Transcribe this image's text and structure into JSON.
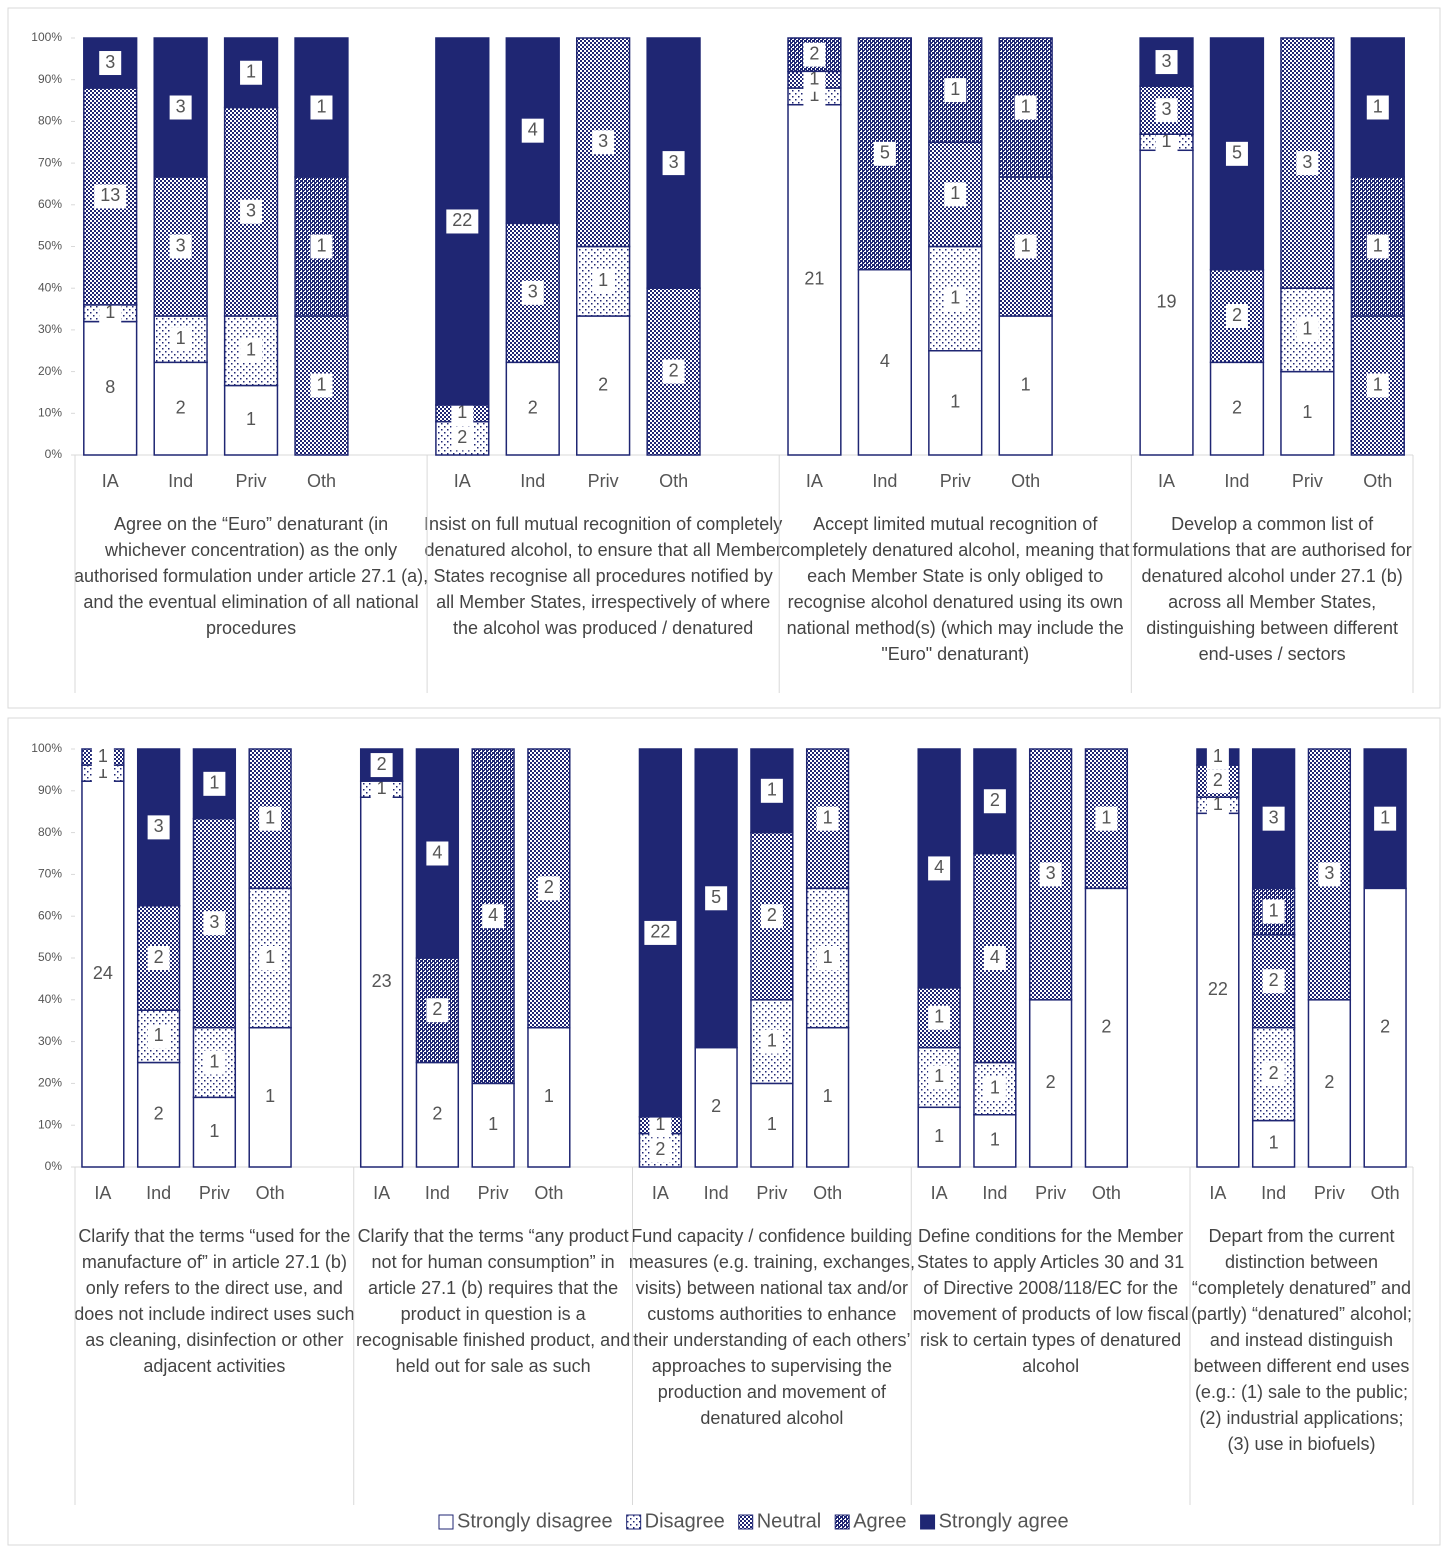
{
  "chart_data": [
    {
      "type": "bar",
      "stacked": "percent",
      "ylim": [
        0,
        100
      ],
      "yticks": [
        {
          "value": 0,
          "label": "0%"
        },
        {
          "value": 10,
          "label": "10%"
        },
        {
          "value": 20,
          "label": "20%"
        },
        {
          "value": 30,
          "label": "30%"
        },
        {
          "value": 40,
          "label": "40%"
        },
        {
          "value": 50,
          "label": "50%"
        },
        {
          "value": 60,
          "label": "60%"
        },
        {
          "value": 70,
          "label": "70%"
        },
        {
          "value": 80,
          "label": "80%"
        },
        {
          "value": 90,
          "label": "90%"
        },
        {
          "value": 100,
          "label": "100%"
        }
      ],
      "groups": [
        {
          "label": "Agree on the “Euro” denaturant (in whichever concentration) as the only authorised formulation under article 27.1 (a), and the eventual elimination of all national procedures",
          "categories": [
            "IA",
            "Ind",
            "Priv",
            "Oth"
          ]
        },
        {
          "label": "Insist on full mutual recognition of completely denatured alcohol, to ensure that all Member States recognise all procedures notified by all Member States, irrespectively of where the alcohol was produced / denatured",
          "categories": [
            "IA",
            "Ind",
            "Priv",
            "Oth"
          ]
        },
        {
          "label": "Accept limited mutual recognition of completely denatured alcohol, meaning that each Member State is only obliged to recognise alcohol denatured using its own national method(s) (which may include the \"Euro\" denaturant)",
          "categories": [
            "IA",
            "Ind",
            "Priv",
            "Oth"
          ]
        },
        {
          "label": "Develop a common list of formulations that are authorised for denatured alcohol under 27.1 (b) across all Member States, distinguishing between different end-uses / sectors",
          "categories": [
            "IA",
            "Ind",
            "Priv",
            "Oth"
          ]
        }
      ],
      "series": [
        {
          "color": "#ffffff",
          "pattern": "solid",
          "values": [
            8,
            2,
            1,
            0,
            0,
            2,
            2,
            0,
            21,
            4,
            1,
            1,
            19,
            2,
            1,
            0
          ]
        },
        {
          "color": "#1f2673",
          "pattern": "sparse-dots",
          "values": [
            1,
            1,
            1,
            0,
            2,
            0,
            1,
            0,
            1,
            0,
            1,
            0,
            1,
            0,
            1,
            0
          ]
        },
        {
          "color": "#1f2673",
          "pattern": "checker",
          "values": [
            13,
            3,
            3,
            1,
            1,
            3,
            3,
            2,
            1,
            0,
            1,
            1,
            3,
            2,
            3,
            1
          ]
        },
        {
          "color": "#1f2673",
          "pattern": "dense-checker",
          "values": [
            0,
            0,
            0,
            1,
            0,
            0,
            0,
            0,
            2,
            5,
            1,
            1,
            0,
            0,
            0,
            1
          ]
        },
        {
          "color": "#1f2673",
          "pattern": "solid",
          "values": [
            3,
            3,
            1,
            1,
            22,
            4,
            0,
            3,
            0,
            0,
            0,
            0,
            3,
            5,
            0,
            1
          ]
        }
      ]
    },
    {
      "type": "bar",
      "stacked": "percent",
      "ylim": [
        0,
        100
      ],
      "legend": "bottom",
      "yticks": [
        {
          "value": 0,
          "label": "0%"
        },
        {
          "value": 10,
          "label": "10%"
        },
        {
          "value": 20,
          "label": "20%"
        },
        {
          "value": 30,
          "label": "30%"
        },
        {
          "value": 40,
          "label": "40%"
        },
        {
          "value": 50,
          "label": "50%"
        },
        {
          "value": 60,
          "label": "60%"
        },
        {
          "value": 70,
          "label": "70%"
        },
        {
          "value": 80,
          "label": "80%"
        },
        {
          "value": 90,
          "label": "90%"
        },
        {
          "value": 100,
          "label": "100%"
        }
      ],
      "groups": [
        {
          "label": "Clarify that the terms “used for the manufacture of” in article 27.1 (b) only refers to the direct use, and does not include indirect uses such as cleaning, disinfection or other adjacent activities",
          "categories": [
            "IA",
            "Ind",
            "Priv",
            "Oth"
          ]
        },
        {
          "label": "Clarify that the terms “any product not for human consumption” in article 27.1 (b) requires that the product in question is a recognisable finished product, and held out for sale as such",
          "categories": [
            "IA",
            "Ind",
            "Priv",
            "Oth"
          ]
        },
        {
          "label": "Fund capacity / confidence building measures (e.g. training, exchanges, visits) between national tax and/or customs authorities to enhance their understanding of each others’ approaches to supervising the production and movement of denatured alcohol",
          "categories": [
            "IA",
            "Ind",
            "Priv",
            "Oth"
          ]
        },
        {
          "label": "Define conditions for the Member States to apply Articles 30 and 31 of Directive 2008/118/EC for the movement of products of low fiscal risk to certain types of denatured alcohol",
          "categories": [
            "IA",
            "Ind",
            "Priv",
            "Oth"
          ]
        },
        {
          "label": "Depart from the current distinction between “completely denatured” and (partly) “denatured” alcohol; and instead distinguish between different end uses (e.g.: (1) sale to the public; (2) industrial applications; (3) use in biofuels)",
          "categories": [
            "IA",
            "Ind",
            "Priv",
            "Oth"
          ]
        }
      ],
      "series": [
        {
          "name": "Strongly disagree",
          "color": "#ffffff",
          "pattern": "solid",
          "values": [
            24,
            2,
            1,
            1,
            23,
            2,
            1,
            1,
            0,
            2,
            1,
            1,
            1,
            1,
            2,
            2,
            22,
            1,
            2,
            2
          ]
        },
        {
          "name": "Disagree",
          "color": "#1f2673",
          "pattern": "sparse-dots",
          "values": [
            1,
            1,
            1,
            1,
            1,
            0,
            0,
            0,
            2,
            0,
            1,
            1,
            1,
            1,
            0,
            0,
            1,
            2,
            0,
            0
          ]
        },
        {
          "name": "Neutral",
          "color": "#1f2673",
          "pattern": "checker",
          "values": [
            1,
            2,
            3,
            1,
            0,
            0,
            0,
            2,
            1,
            0,
            2,
            1,
            1,
            4,
            3,
            1,
            2,
            2,
            3,
            0
          ]
        },
        {
          "name": "Agree",
          "color": "#1f2673",
          "pattern": "dense-checker",
          "values": [
            0,
            0,
            0,
            0,
            0,
            2,
            4,
            0,
            0,
            0,
            0,
            0,
            0,
            0,
            0,
            0,
            0,
            1,
            0,
            0
          ]
        },
        {
          "name": "Strongly agree",
          "color": "#1f2673",
          "pattern": "solid",
          "values": [
            0,
            3,
            1,
            0,
            2,
            4,
            0,
            0,
            22,
            5,
            1,
            0,
            4,
            2,
            0,
            0,
            1,
            3,
            0,
            1
          ]
        }
      ]
    }
  ]
}
